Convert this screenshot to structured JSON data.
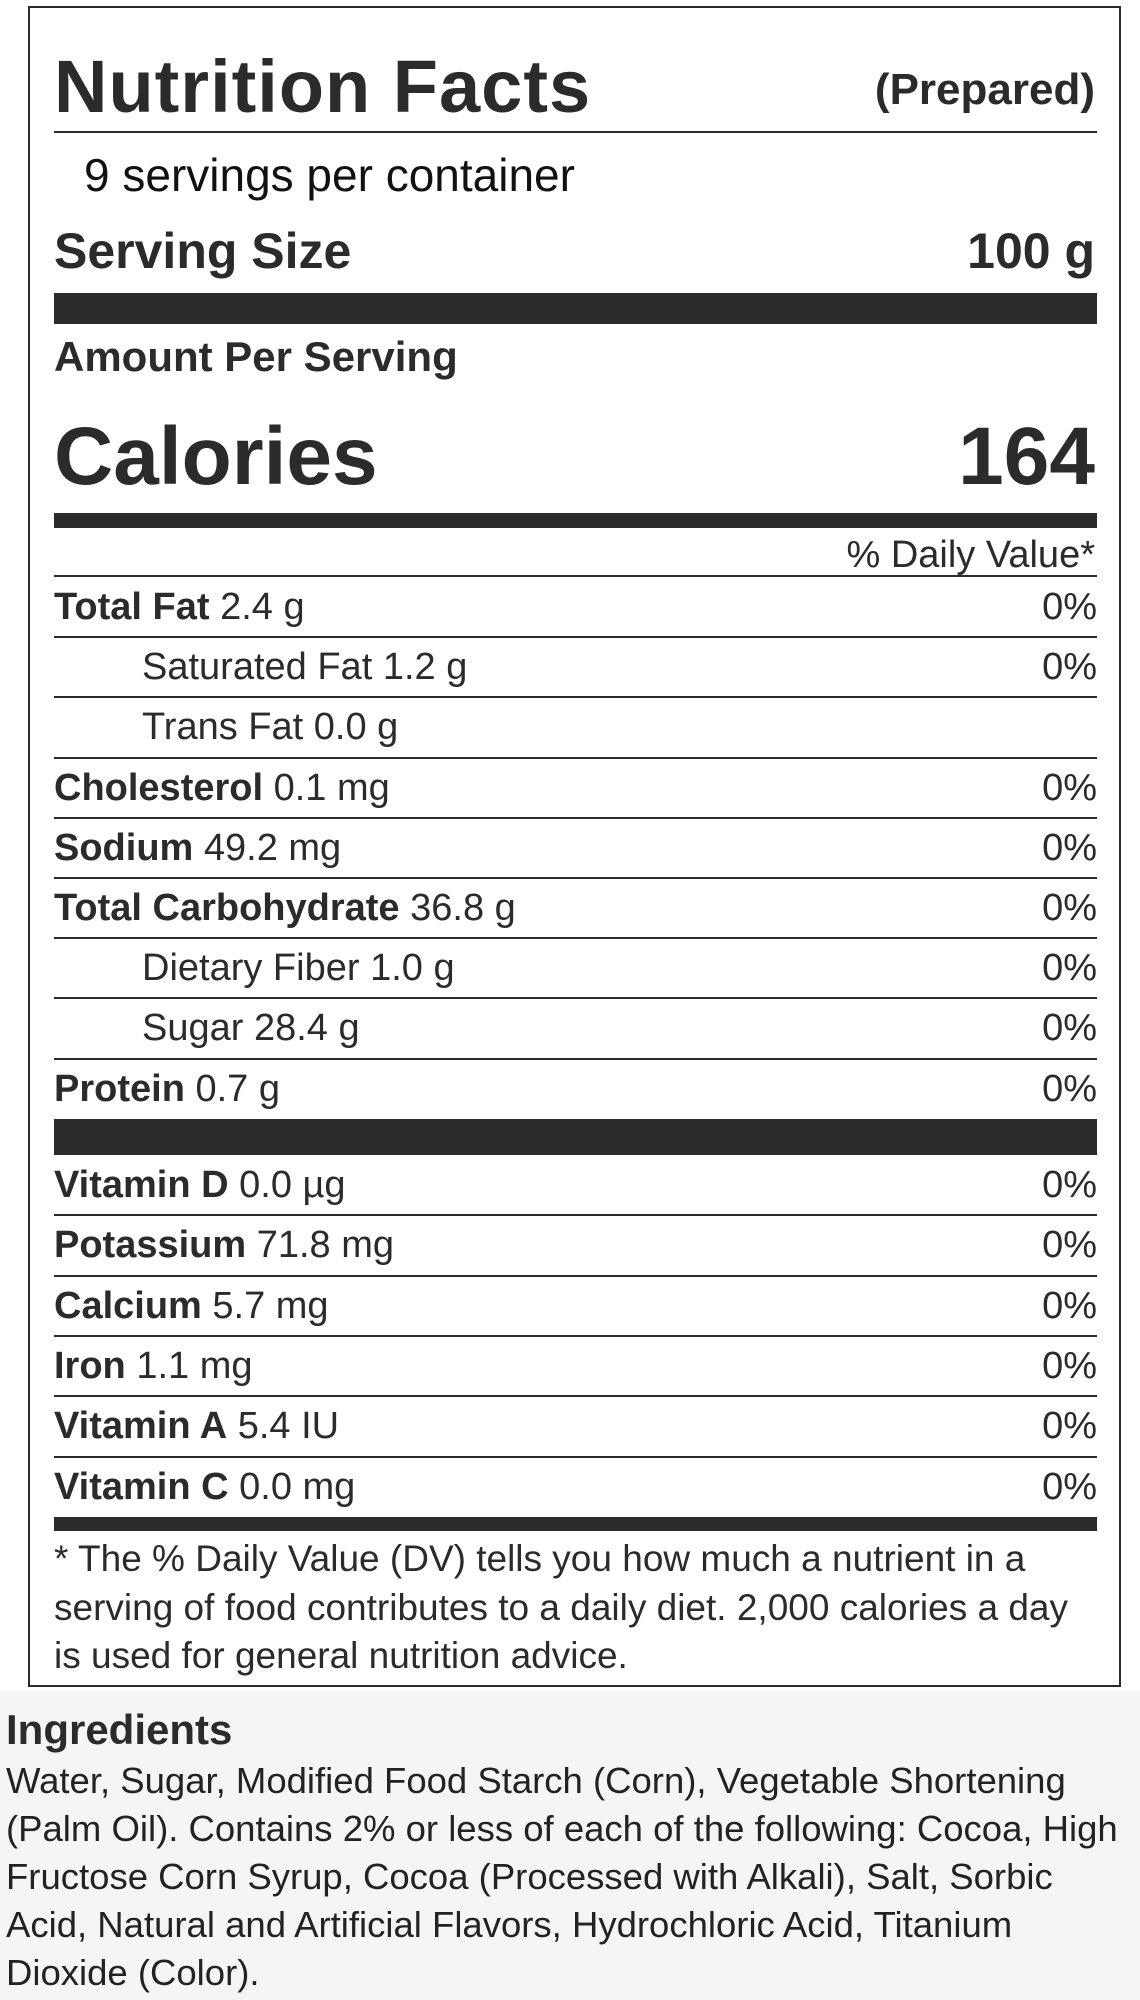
{
  "label": {
    "title": "Nutrition Facts",
    "subtitle": "(Prepared)",
    "servings": "9 servings per container",
    "serving_size_label": "Serving Size",
    "serving_size_value": "100 g",
    "amount_per_serving": "Amount Per Serving",
    "calories_label": "Calories",
    "calories_value": 164,
    "daily_value_header": "% Daily Value*",
    "nutrients": [
      {
        "name": "Total Fat",
        "amount": "2.4 g",
        "dv": "0%"
      },
      {
        "name": "Saturated Fat",
        "amount": "1.2 g",
        "dv": "0%",
        "indent": true
      },
      {
        "name": "Trans Fat",
        "amount": "0.0 g",
        "indent": true
      },
      {
        "name": "Cholesterol",
        "amount": "0.1 mg",
        "dv": "0%"
      },
      {
        "name": "Sodium",
        "amount": "49.2 mg",
        "dv": "0%"
      },
      {
        "name": "Total Carbohydrate",
        "amount": "36.8 g",
        "dv": "0%"
      },
      {
        "name": "Dietary Fiber",
        "amount": "1.0 g",
        "dv": "0%",
        "indent": true
      },
      {
        "name": "Sugar",
        "amount": "28.4 g",
        "dv": "0%",
        "indent": true
      },
      {
        "name": "Protein",
        "amount": "0.7 g",
        "dv": "0%"
      }
    ],
    "vitamins": [
      {
        "name": "Vitamin D",
        "amount": "0.0 µg",
        "dv": "0%"
      },
      {
        "name": "Potassium",
        "amount": "71.8 mg",
        "dv": "0%"
      },
      {
        "name": "Calcium",
        "amount": "5.7 mg",
        "dv": "0%"
      },
      {
        "name": "Iron",
        "amount": "1.1 mg",
        "dv": "0%"
      },
      {
        "name": "Vitamin A",
        "amount": "5.4 IU",
        "dv": "0%"
      },
      {
        "name": "Vitamin C",
        "amount": "0.0 mg",
        "dv": "0%"
      }
    ],
    "footnote": "* The % Daily Value (DV) tells you how much a nutrient in a serving of food contributes to a daily diet. 2,000 calories a day is used for general nutrition advice."
  },
  "ingredients": {
    "title": "Ingredients",
    "text": "Water, Sugar, Modified Food Starch (Corn), Vegetable Shortening (Palm Oil). Contains 2% or less of each of the following: Cocoa, High Fructose Corn Syrup, Cocoa (Processed with Alkali), Salt, Sorbic Acid, Natural and Artificial Flavors, Hydrochloric Acid, Titanium Dioxide (Color)."
  }
}
